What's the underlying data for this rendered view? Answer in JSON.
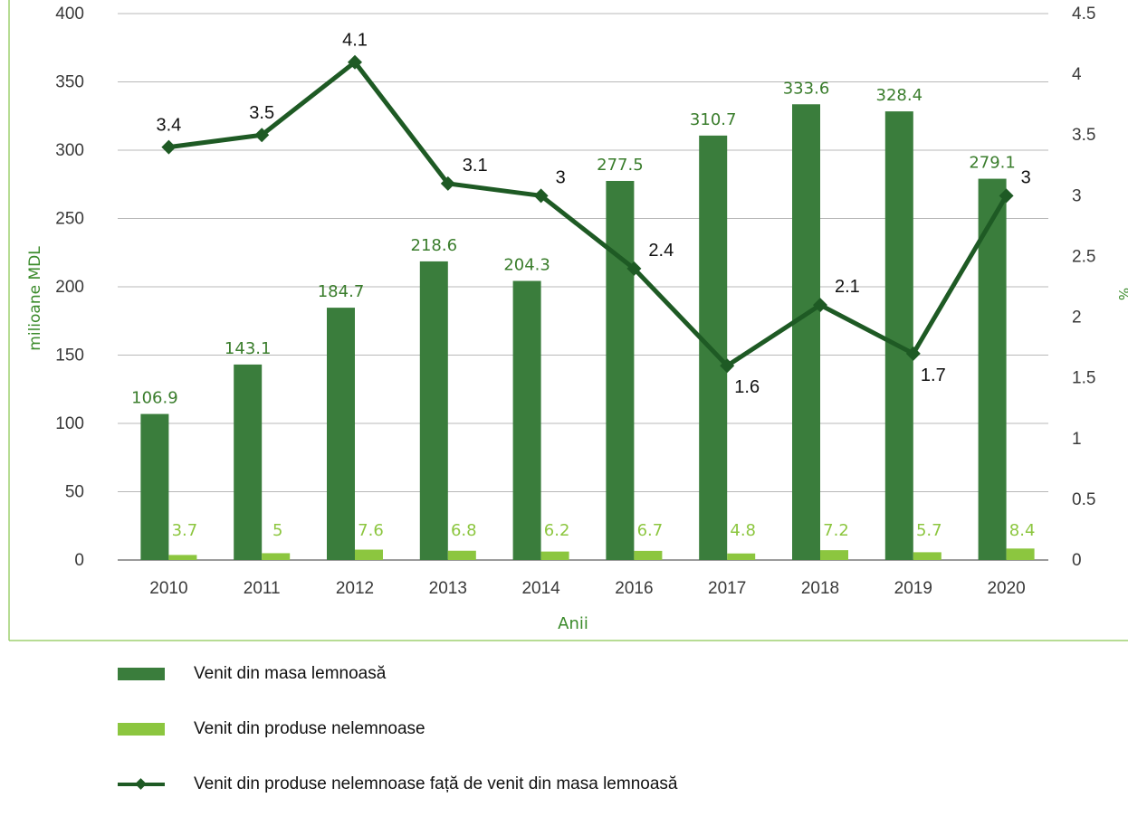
{
  "chart_data": {
    "type": "bar",
    "categories": [
      "2010",
      "2011",
      "2012",
      "2013",
      "2014",
      "2016",
      "2017",
      "2018",
      "2019",
      "2020"
    ],
    "series": [
      {
        "name": "Venit din masa lemnoasă",
        "type": "bar",
        "axis": "left",
        "color": "#3a7d3c",
        "values": [
          106.9,
          143.1,
          184.7,
          218.6,
          204.3,
          277.5,
          310.7,
          333.6,
          328.4,
          279.1
        ]
      },
      {
        "name": "Venit din produse nelemnoase",
        "type": "bar",
        "axis": "left",
        "color": "#8cc63f",
        "values": [
          3.7,
          5,
          7.6,
          6.8,
          6.2,
          6.7,
          4.8,
          7.2,
          5.7,
          8.4
        ]
      },
      {
        "name": "Venit din produse nelemnoase față de venit din masa lemnoasă",
        "type": "line",
        "axis": "right",
        "color": "#1e5a24",
        "values": [
          3.4,
          3.5,
          4.1,
          3.1,
          3,
          2.4,
          1.6,
          2.1,
          1.7,
          3
        ]
      }
    ],
    "value_labels": {
      "bars_dark": [
        "106.9",
        "143.1",
        "184.7",
        "218.6",
        "204.3",
        "277.5",
        "310.7",
        "333.6",
        "328.4",
        "279.1"
      ],
      "bars_light": [
        "3.7",
        "5",
        "7.6",
        "6.8",
        "6.2",
        "6.7",
        "4.8",
        "7.2",
        "5.7",
        "8.4"
      ],
      "line": [
        "3.4",
        "3.5",
        "4.1",
        "3.1",
        "3",
        "2.4",
        "1.6",
        "2.1",
        "1.7",
        "3"
      ]
    },
    "xlabel": "Anii",
    "ylabel_left": "milioane MDL",
    "ylabel_right": "%",
    "ylim_left": [
      0,
      400
    ],
    "ylim_right": [
      0,
      4.5
    ],
    "yticks_left": [
      "0",
      "50",
      "100",
      "150",
      "200",
      "250",
      "300",
      "350",
      "400"
    ],
    "yticks_right": [
      "0",
      "0.5",
      "1",
      "1.5",
      "2",
      "2.5",
      "3",
      "3.5",
      "4",
      "4.5"
    ],
    "grid": true,
    "legend_position": "bottom"
  }
}
